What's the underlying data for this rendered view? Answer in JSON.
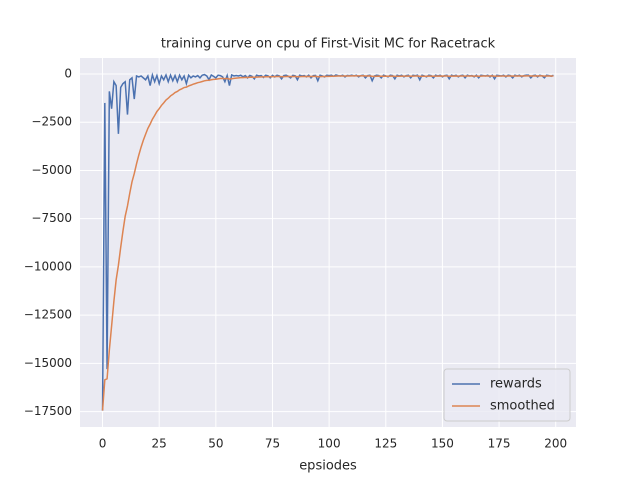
{
  "chart_data": {
    "type": "line",
    "title": "training curve on cpu of First-Visit MC for Racetrack",
    "x_label": "epsiodes",
    "x": [
      0,
      1,
      2,
      3,
      4,
      5,
      6,
      7,
      8,
      9,
      10,
      11,
      12,
      13,
      14,
      15,
      16,
      17,
      18,
      19,
      20,
      21,
      22,
      23,
      24,
      25,
      26,
      27,
      28,
      29,
      30,
      31,
      32,
      33,
      34,
      35,
      36,
      37,
      38,
      39,
      40,
      41,
      42,
      43,
      44,
      45,
      46,
      47,
      48,
      49,
      50,
      51,
      52,
      53,
      54,
      55,
      56,
      57,
      58,
      59,
      60,
      61,
      62,
      63,
      64,
      65,
      66,
      67,
      68,
      69,
      70,
      71,
      72,
      73,
      74,
      75,
      76,
      77,
      78,
      79,
      80,
      81,
      82,
      83,
      84,
      85,
      86,
      87,
      88,
      89,
      90,
      91,
      92,
      93,
      94,
      95,
      96,
      97,
      98,
      99,
      100,
      101,
      102,
      103,
      104,
      105,
      106,
      107,
      108,
      109,
      110,
      111,
      112,
      113,
      114,
      115,
      116,
      117,
      118,
      119,
      120,
      121,
      122,
      123,
      124,
      125,
      126,
      127,
      128,
      129,
      130,
      131,
      132,
      133,
      134,
      135,
      136,
      137,
      138,
      139,
      140,
      141,
      142,
      143,
      144,
      145,
      146,
      147,
      148,
      149,
      150,
      151,
      152,
      153,
      154,
      155,
      156,
      157,
      158,
      159,
      160,
      161,
      162,
      163,
      164,
      165,
      166,
      167,
      168,
      169,
      170,
      171,
      172,
      173,
      174,
      175,
      176,
      177,
      178,
      179,
      180,
      181,
      182,
      183,
      184,
      185,
      186,
      187,
      188,
      189,
      190,
      191,
      192,
      193,
      194,
      195,
      196,
      197,
      198,
      199
    ],
    "series": [
      {
        "name": "rewards",
        "color": "#4c72b0",
        "values": [
          -17450,
          -1500,
          -15300,
          -900,
          -1800,
          -400,
          -600,
          -3100,
          -700,
          -500,
          -400,
          -2100,
          -300,
          -200,
          -1300,
          -100,
          -150,
          -100,
          -200,
          -300,
          -100,
          -600,
          -50,
          -400,
          -80,
          -500,
          -100,
          -300,
          -50,
          -400,
          -60,
          -350,
          -80,
          -400,
          -60,
          -300,
          -100,
          -500,
          -60,
          -200,
          -100,
          -150,
          -80,
          -200,
          -60,
          -30,
          -100,
          -300,
          -50,
          -120,
          -200,
          -60,
          -80,
          -150,
          -400,
          -80,
          -600,
          -50,
          -100,
          -80,
          -100,
          -60,
          -150,
          -80,
          -200,
          -70,
          -120,
          -250,
          -60,
          -100,
          -80,
          -180,
          -60,
          -90,
          -200,
          -70,
          -150,
          -60,
          -100,
          -250,
          -80,
          -60,
          -120,
          -200,
          -70,
          -90,
          -300,
          -60,
          -100,
          -80,
          -150,
          -60,
          -200,
          -80,
          -70,
          -350,
          -60,
          -100,
          -150,
          -60,
          -80,
          -60,
          -120,
          -50,
          -80,
          -100,
          -60,
          -150,
          -70,
          -90,
          -60,
          -100,
          -60,
          -150,
          -80,
          -60,
          -200,
          -80,
          -60,
          -350,
          -100,
          -60,
          -80,
          -200,
          -60,
          -100,
          -150,
          -60,
          -80,
          -250,
          -60,
          -100,
          -60,
          -150,
          -80,
          -60,
          -200,
          -60,
          -90,
          -60,
          -300,
          -60,
          -100,
          -150,
          -60,
          -80,
          -200,
          -60,
          -100,
          -60,
          -150,
          -80,
          -60,
          -250,
          -60,
          -100,
          -60,
          -150,
          -80,
          -60,
          -200,
          -60,
          -100,
          -80,
          -150,
          -60,
          -200,
          -60,
          -80,
          -100,
          -60,
          -150,
          -60,
          -250,
          -60,
          -80,
          -100,
          -60,
          -150,
          -60,
          -80,
          -200,
          -60,
          -100,
          -60,
          -150,
          -80,
          -60,
          -60,
          -200,
          -80,
          -60,
          -150,
          -60,
          -100,
          -200,
          -60,
          -80,
          -120,
          -60
        ]
      },
      {
        "name": "smoothed",
        "color": "#dd8452",
        "values": [
          -17450,
          -15855,
          -15800,
          -14310,
          -13059,
          -11793,
          -10674,
          -9916,
          -8995,
          -8145,
          -7371,
          -6844,
          -6190,
          -5591,
          -5162,
          -4656,
          -4205,
          -3795,
          -3435,
          -3122,
          -2820,
          -2598,
          -2343,
          -2149,
          -1942,
          -1798,
          -1628,
          -1495,
          -1351,
          -1256,
          -1136,
          -1058,
          -960,
          -904,
          -820,
          -768,
          -701,
          -681,
          -619,
          -577,
          -529,
          -491,
          -450,
          -425,
          -389,
          -353,
          -328,
          -325,
          -298,
          -280,
          -272,
          -251,
          -234,
          -226,
          -243,
          -227,
          -264,
          -243,
          -229,
          -214,
          -203,
          -189,
          -185,
          -175,
          -178,
          -167,
          -162,
          -171,
          -160,
          -154,
          -147,
          -150,
          -141,
          -136,
          -142,
          -135,
          -137,
          -129,
          -126,
          -139,
          -133,
          -126,
          -125,
          -133,
          -127,
          -123,
          -141,
          -133,
          -130,
          -125,
          -128,
          -121,
          -129,
          -124,
          -119,
          -142,
          -134,
          -130,
          -132,
          -125,
          -120,
          -114,
          -115,
          -108,
          -105,
          -105,
          -100,
          -105,
          -102,
          -101,
          -97,
          -97,
          -94,
          -99,
          -97,
          -93,
          -104,
          -101,
          -97,
          -122,
          -120,
          -114,
          -110,
          -119,
          -113,
          -112,
          -116,
          -110,
          -107,
          -121,
          -115,
          -113,
          -108,
          -112,
          -109,
          -104,
          -114,
          -108,
          -106,
          -101,
          -121,
          -115,
          -113,
          -117,
          -111,
          -108,
          -117,
          -111,
          -110,
          -105,
          -109,
          -106,
          -101,
          -116,
          -110,
          -109,
          -104,
          -109,
          -106,
          -102,
          -111,
          -106,
          -105,
          -103,
          -107,
          -103,
          -113,
          -108,
          -105,
          -104,
          -100,
          -105,
          -100,
          -115,
          -110,
          -107,
          -106,
          -102,
          -107,
          -102,
          -100,
          -110,
          -105,
          -104,
          -100,
          -105,
          -102,
          -98,
          -94,
          -105,
          -102,
          -98,
          -103,
          -99,
          -99,
          -109,
          -104,
          -102,
          -104,
          -100
        ]
      }
    ],
    "xlim": [
      -9.95,
      208.95
    ],
    "xticks": [
      0,
      25,
      50,
      75,
      100,
      125,
      150,
      175,
      200
    ],
    "ylim": [
      -18300,
      830
    ],
    "yticks": [
      0,
      {
        "value": -2500,
        "label": "−2500"
      },
      {
        "value": -5000,
        "label": "−5000"
      },
      {
        "value": -7500,
        "label": "−7500"
      },
      {
        "value": -10000,
        "label": "−10000"
      },
      {
        "value": -12500,
        "label": "−12500"
      },
      {
        "value": -15000,
        "label": "−15000"
      },
      {
        "value": -17500,
        "label": "−17500"
      }
    ],
    "grid": true,
    "legend": "lower right"
  }
}
